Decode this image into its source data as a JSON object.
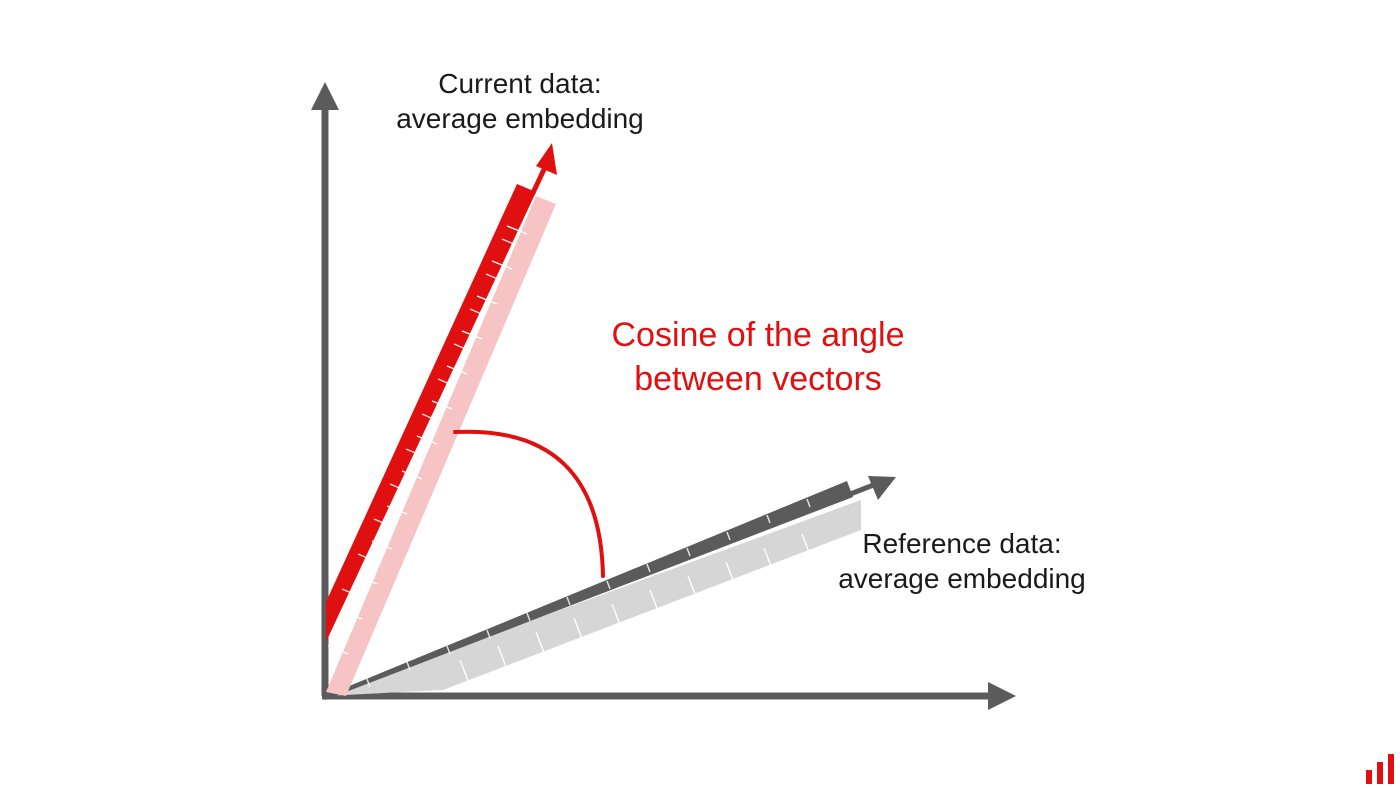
{
  "labels": {
    "current": {
      "line1": "Current data:",
      "line2": "average embedding"
    },
    "reference": {
      "line1": "Reference data:",
      "line2": "average embedding"
    },
    "angle": {
      "line1": "Cosine of the angle",
      "line2": "between vectors"
    }
  },
  "colors": {
    "axis": "#5b5b5b",
    "current_vector": "#e01010",
    "current_vector_shade": "#f6c4c4",
    "reference_vector": "#5b5b5b",
    "reference_vector_shade": "#d6d6d6",
    "angle_arc": "#e01010",
    "angle_text": "#e01010",
    "logo": "#e01010"
  },
  "icons": {
    "logo": "bar-chart-logo-icon"
  }
}
